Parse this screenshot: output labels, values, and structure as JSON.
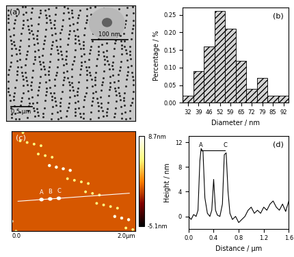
{
  "images": [
    {
      "type": "image",
      "panel_label": "(a)",
      "scale_bar": "0.5 µm",
      "inset_scale_bar": "100 nm"
    },
    {
      "type": "image",
      "panel_label": "(c)",
      "x_range_labels": [
        "0.0",
        "2.0µm"
      ],
      "markers": [
        "A",
        "B",
        "C"
      ],
      "colorbar": {
        "range": [
          -5.1,
          8.7
        ],
        "ticks": [
          {
            "value": 8.7,
            "label": "8.7nm"
          },
          {
            "value": -5.1,
            "label": "-5.1nm"
          }
        ]
      }
    }
  ],
  "chart_data": [
    {
      "type": "bar",
      "panel_label": "(b)",
      "xlabel": "Diameter / nm",
      "ylabel": "Percentage / %",
      "categories": [
        "32",
        "39",
        "46",
        "52",
        "59",
        "65",
        "72",
        "79",
        "85",
        "92"
      ],
      "values": [
        0.02,
        0.09,
        0.16,
        0.26,
        0.21,
        0.12,
        0.04,
        0.07,
        0.02,
        0.02
      ],
      "color": "#d3d3d3",
      "ylim": [
        0,
        0.27
      ],
      "yticks": [
        {
          "value": 0,
          "label": "0.00"
        },
        {
          "value": 0.05,
          "label": "0.05"
        },
        {
          "value": 0.1,
          "label": "0.10"
        },
        {
          "value": 0.15,
          "label": "0.15"
        },
        {
          "value": 0.2,
          "label": "0.20"
        },
        {
          "value": 0.25,
          "label": "0.25"
        }
      ]
    },
    {
      "type": "line",
      "panel_label": "(d)",
      "xlabel": "Distance / µm",
      "ylabel": "Height / nm",
      "color": "#000000",
      "x": [
        0.0,
        0.04,
        0.08,
        0.12,
        0.15,
        0.18,
        0.2,
        0.23,
        0.26,
        0.3,
        0.34,
        0.37,
        0.4,
        0.43,
        0.46,
        0.5,
        0.54,
        0.57,
        0.6,
        0.63,
        0.66,
        0.7,
        0.75,
        0.8,
        0.85,
        0.9,
        0.95,
        1.0,
        1.05,
        1.1,
        1.15,
        1.2,
        1.25,
        1.3,
        1.35,
        1.4,
        1.45,
        1.5,
        1.55,
        1.6
      ],
      "values": [
        0,
        -0.5,
        0.3,
        0,
        1,
        9,
        11,
        10.5,
        3,
        0.5,
        0,
        1,
        6,
        1,
        0.2,
        0,
        2,
        10,
        10.3,
        4,
        0.5,
        -0.5,
        0,
        -1,
        -0.5,
        0,
        1,
        1.5,
        0.5,
        1,
        0.5,
        1.5,
        1,
        2,
        2.5,
        1.5,
        1,
        2,
        0.8,
        2.5
      ],
      "xlim": [
        0,
        1.6
      ],
      "ylim": [
        -2,
        13
      ],
      "xticks": [
        {
          "value": 0,
          "label": "0.0"
        },
        {
          "value": 0.4,
          "label": "0.4"
        },
        {
          "value": 0.8,
          "label": "0.8"
        },
        {
          "value": 1.2,
          "label": "1.2"
        },
        {
          "value": 1.6,
          "label": "1.6"
        }
      ],
      "yticks": [
        0,
        4,
        8,
        12
      ],
      "annotations": [
        {
          "text": "A",
          "x": 0.2,
          "y": 10.7
        },
        {
          "text": "C",
          "x": 0.58,
          "y": 10.7
        }
      ]
    }
  ]
}
